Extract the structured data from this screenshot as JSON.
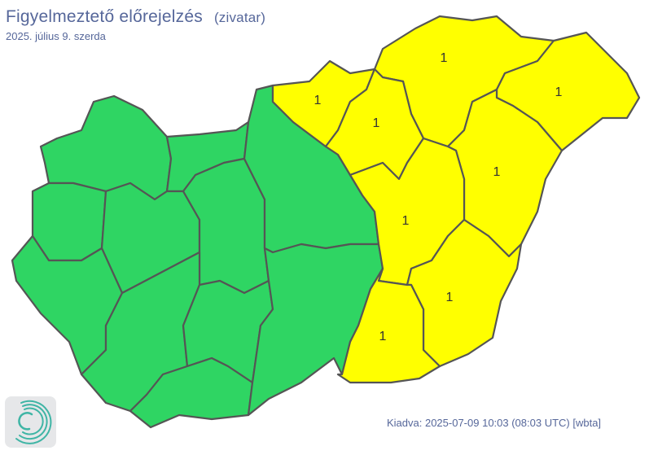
{
  "header": {
    "title": "Figyelmeztető előrejelzés",
    "phenomenon": "(zivatar)",
    "date": "2025. július 9. szerda"
  },
  "footer": {
    "issued": "Kiadva: 2025-07-09 10:03 (08:03 UTC) [wbta]"
  },
  "colors": {
    "level0": "#2fd563",
    "level1": "#ffff00",
    "border": "#555555",
    "text": "#56679a",
    "logo": "#3fb5a5"
  },
  "map": {
    "regions": [
      {
        "level": 0
      },
      {
        "level": 0
      },
      {
        "level": 0
      },
      {
        "level": 0
      },
      {
        "level": 0
      },
      {
        "level": 0
      },
      {
        "level": 0
      },
      {
        "level": 0
      },
      {
        "level": 0
      },
      {
        "level": 0
      },
      {
        "level": 0
      },
      {
        "level": 1,
        "label": "1"
      },
      {
        "level": 1,
        "label": "1"
      },
      {
        "level": 1,
        "label": "1"
      },
      {
        "level": 1,
        "label": "1"
      },
      {
        "level": 1,
        "label": "1"
      },
      {
        "level": 1,
        "label": "1"
      },
      {
        "level": 1,
        "label": "1"
      },
      {
        "level": 1,
        "label": "1"
      }
    ]
  }
}
